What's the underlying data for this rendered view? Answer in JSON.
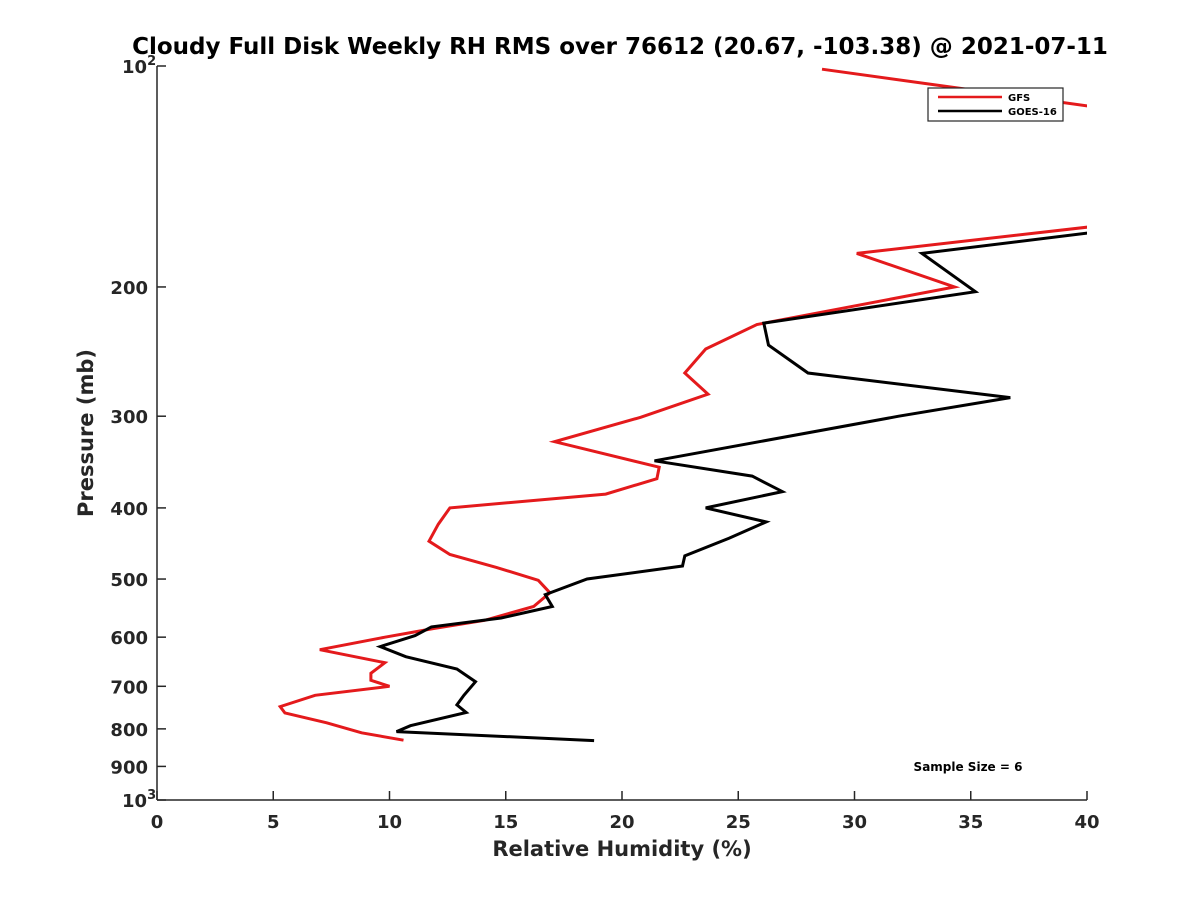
{
  "chart_data": {
    "type": "line",
    "title": "Cloudy Full Disk Weekly RH RMS over 76612 (20.67, -103.38) @ 2021-07-11",
    "xlabel": "Relative Humidity (%)",
    "ylabel": "Pressure (mb)",
    "xlim": [
      0,
      40
    ],
    "ylim": [
      100,
      1000
    ],
    "yscale": "log",
    "y_reversed": true,
    "grid": false,
    "xticks": [
      0,
      5,
      10,
      15,
      20,
      25,
      30,
      35,
      40
    ],
    "yticks": [
      {
        "value": 100,
        "base": "10",
        "exp": "2"
      },
      {
        "value": 200,
        "label": "200"
      },
      {
        "value": 300,
        "label": "300"
      },
      {
        "value": 400,
        "label": "400"
      },
      {
        "value": 500,
        "label": "500"
      },
      {
        "value": 600,
        "label": "600"
      },
      {
        "value": 700,
        "label": "700"
      },
      {
        "value": 800,
        "label": "800"
      },
      {
        "value": 900,
        "label": "900"
      },
      {
        "value": 1000,
        "base": "10",
        "exp": "3"
      }
    ],
    "legend_position": "top-right",
    "annotation": "Sample Size = 6",
    "series": [
      {
        "name": "GFS",
        "color": "#e41a1c",
        "x": [
          28.6,
          40.6,
          40.6,
          30.1,
          34.3,
          25.8,
          23.6,
          22.7,
          23.7,
          20.8,
          17.1,
          21.6,
          21.5,
          19.3,
          12.6,
          12.1,
          11.7,
          12.6,
          14.6,
          16.4,
          16.9,
          16.2,
          14.1,
          11.9,
          9.8,
          7.0,
          9.8,
          9.2,
          9.2,
          10.0,
          6.8,
          5.3,
          5.5,
          7.3,
          8.8,
          10.6
        ],
        "y": [
          101,
          114,
          165,
          180,
          200,
          225,
          243,
          262,
          280,
          301,
          325,
          352,
          365,
          383,
          400,
          421,
          444,
          463,
          482,
          502,
          522,
          545,
          569,
          584,
          600,
          624,
          650,
          672,
          687,
          700,
          720,
          746,
          761,
          785,
          810,
          829
        ]
      },
      {
        "name": "GOES-16",
        "color": "#000000",
        "x": [
          40.6,
          32.9,
          35.2,
          26.1,
          26.3,
          28.0,
          36.7,
          31.9,
          21.4,
          25.6,
          26.9,
          23.6,
          26.2,
          24.6,
          22.7,
          22.6,
          18.5,
          16.7,
          17.0,
          14.8,
          11.8,
          11.1,
          9.6,
          10.7,
          12.9,
          13.7,
          13.2,
          12.9,
          13.3,
          10.9,
          10.3,
          18.8
        ],
        "y": [
          168,
          180,
          203,
          224,
          240,
          262,
          283,
          300,
          345,
          362,
          380,
          400,
          418,
          440,
          465,
          480,
          500,
          525,
          545,
          565,
          581,
          597,
          618,
          638,
          663,
          690,
          720,
          742,
          760,
          792,
          807,
          830
        ]
      }
    ]
  }
}
